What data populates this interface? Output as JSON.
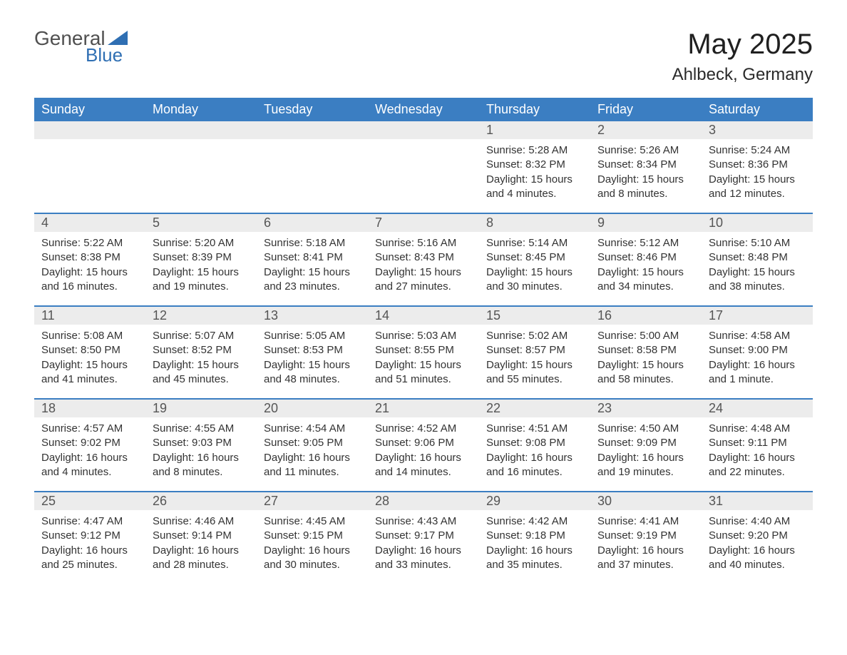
{
  "logo": {
    "word1": "General",
    "word2": "Blue"
  },
  "title": "May 2025",
  "location": "Ahlbeck, Germany",
  "colors": {
    "header_bg": "#3b7ec2",
    "header_text": "#ffffff",
    "daynum_bg": "#ececec",
    "daynum_text": "#555555",
    "row_border": "#3b7ec2",
    "logo_gray": "#505050",
    "logo_blue": "#2f6fb3",
    "page_bg": "#ffffff",
    "body_text": "#333333"
  },
  "weekdays": [
    "Sunday",
    "Monday",
    "Tuesday",
    "Wednesday",
    "Thursday",
    "Friday",
    "Saturday"
  ],
  "weeks": [
    [
      {
        "blank": true
      },
      {
        "blank": true
      },
      {
        "blank": true
      },
      {
        "blank": true
      },
      {
        "day": "1",
        "sunrise": "Sunrise: 5:28 AM",
        "sunset": "Sunset: 8:32 PM",
        "daylight": "Daylight: 15 hours and 4 minutes."
      },
      {
        "day": "2",
        "sunrise": "Sunrise: 5:26 AM",
        "sunset": "Sunset: 8:34 PM",
        "daylight": "Daylight: 15 hours and 8 minutes."
      },
      {
        "day": "3",
        "sunrise": "Sunrise: 5:24 AM",
        "sunset": "Sunset: 8:36 PM",
        "daylight": "Daylight: 15 hours and 12 minutes."
      }
    ],
    [
      {
        "day": "4",
        "sunrise": "Sunrise: 5:22 AM",
        "sunset": "Sunset: 8:38 PM",
        "daylight": "Daylight: 15 hours and 16 minutes."
      },
      {
        "day": "5",
        "sunrise": "Sunrise: 5:20 AM",
        "sunset": "Sunset: 8:39 PM",
        "daylight": "Daylight: 15 hours and 19 minutes."
      },
      {
        "day": "6",
        "sunrise": "Sunrise: 5:18 AM",
        "sunset": "Sunset: 8:41 PM",
        "daylight": "Daylight: 15 hours and 23 minutes."
      },
      {
        "day": "7",
        "sunrise": "Sunrise: 5:16 AM",
        "sunset": "Sunset: 8:43 PM",
        "daylight": "Daylight: 15 hours and 27 minutes."
      },
      {
        "day": "8",
        "sunrise": "Sunrise: 5:14 AM",
        "sunset": "Sunset: 8:45 PM",
        "daylight": "Daylight: 15 hours and 30 minutes."
      },
      {
        "day": "9",
        "sunrise": "Sunrise: 5:12 AM",
        "sunset": "Sunset: 8:46 PM",
        "daylight": "Daylight: 15 hours and 34 minutes."
      },
      {
        "day": "10",
        "sunrise": "Sunrise: 5:10 AM",
        "sunset": "Sunset: 8:48 PM",
        "daylight": "Daylight: 15 hours and 38 minutes."
      }
    ],
    [
      {
        "day": "11",
        "sunrise": "Sunrise: 5:08 AM",
        "sunset": "Sunset: 8:50 PM",
        "daylight": "Daylight: 15 hours and 41 minutes."
      },
      {
        "day": "12",
        "sunrise": "Sunrise: 5:07 AM",
        "sunset": "Sunset: 8:52 PM",
        "daylight": "Daylight: 15 hours and 45 minutes."
      },
      {
        "day": "13",
        "sunrise": "Sunrise: 5:05 AM",
        "sunset": "Sunset: 8:53 PM",
        "daylight": "Daylight: 15 hours and 48 minutes."
      },
      {
        "day": "14",
        "sunrise": "Sunrise: 5:03 AM",
        "sunset": "Sunset: 8:55 PM",
        "daylight": "Daylight: 15 hours and 51 minutes."
      },
      {
        "day": "15",
        "sunrise": "Sunrise: 5:02 AM",
        "sunset": "Sunset: 8:57 PM",
        "daylight": "Daylight: 15 hours and 55 minutes."
      },
      {
        "day": "16",
        "sunrise": "Sunrise: 5:00 AM",
        "sunset": "Sunset: 8:58 PM",
        "daylight": "Daylight: 15 hours and 58 minutes."
      },
      {
        "day": "17",
        "sunrise": "Sunrise: 4:58 AM",
        "sunset": "Sunset: 9:00 PM",
        "daylight": "Daylight: 16 hours and 1 minute."
      }
    ],
    [
      {
        "day": "18",
        "sunrise": "Sunrise: 4:57 AM",
        "sunset": "Sunset: 9:02 PM",
        "daylight": "Daylight: 16 hours and 4 minutes."
      },
      {
        "day": "19",
        "sunrise": "Sunrise: 4:55 AM",
        "sunset": "Sunset: 9:03 PM",
        "daylight": "Daylight: 16 hours and 8 minutes."
      },
      {
        "day": "20",
        "sunrise": "Sunrise: 4:54 AM",
        "sunset": "Sunset: 9:05 PM",
        "daylight": "Daylight: 16 hours and 11 minutes."
      },
      {
        "day": "21",
        "sunrise": "Sunrise: 4:52 AM",
        "sunset": "Sunset: 9:06 PM",
        "daylight": "Daylight: 16 hours and 14 minutes."
      },
      {
        "day": "22",
        "sunrise": "Sunrise: 4:51 AM",
        "sunset": "Sunset: 9:08 PM",
        "daylight": "Daylight: 16 hours and 16 minutes."
      },
      {
        "day": "23",
        "sunrise": "Sunrise: 4:50 AM",
        "sunset": "Sunset: 9:09 PM",
        "daylight": "Daylight: 16 hours and 19 minutes."
      },
      {
        "day": "24",
        "sunrise": "Sunrise: 4:48 AM",
        "sunset": "Sunset: 9:11 PM",
        "daylight": "Daylight: 16 hours and 22 minutes."
      }
    ],
    [
      {
        "day": "25",
        "sunrise": "Sunrise: 4:47 AM",
        "sunset": "Sunset: 9:12 PM",
        "daylight": "Daylight: 16 hours and 25 minutes."
      },
      {
        "day": "26",
        "sunrise": "Sunrise: 4:46 AM",
        "sunset": "Sunset: 9:14 PM",
        "daylight": "Daylight: 16 hours and 28 minutes."
      },
      {
        "day": "27",
        "sunrise": "Sunrise: 4:45 AM",
        "sunset": "Sunset: 9:15 PM",
        "daylight": "Daylight: 16 hours and 30 minutes."
      },
      {
        "day": "28",
        "sunrise": "Sunrise: 4:43 AM",
        "sunset": "Sunset: 9:17 PM",
        "daylight": "Daylight: 16 hours and 33 minutes."
      },
      {
        "day": "29",
        "sunrise": "Sunrise: 4:42 AM",
        "sunset": "Sunset: 9:18 PM",
        "daylight": "Daylight: 16 hours and 35 minutes."
      },
      {
        "day": "30",
        "sunrise": "Sunrise: 4:41 AM",
        "sunset": "Sunset: 9:19 PM",
        "daylight": "Daylight: 16 hours and 37 minutes."
      },
      {
        "day": "31",
        "sunrise": "Sunrise: 4:40 AM",
        "sunset": "Sunset: 9:20 PM",
        "daylight": "Daylight: 16 hours and 40 minutes."
      }
    ]
  ]
}
